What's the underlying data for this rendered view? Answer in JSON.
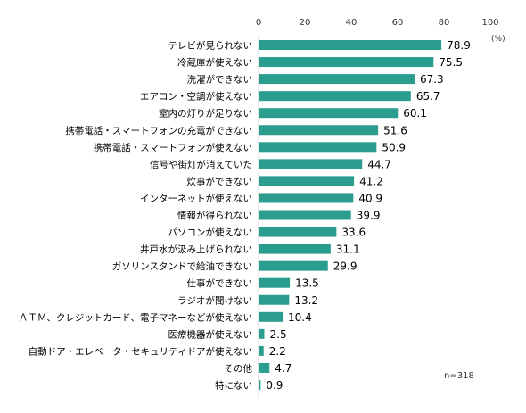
{
  "chart_data": {
    "type": "bar",
    "orientation": "horizontal",
    "unit_label": "(%)",
    "note": "n=318",
    "bar_color": "#2a9d8f",
    "xlim": [
      0,
      100
    ],
    "xticks": [
      "0",
      "20",
      "40",
      "60",
      "80",
      "100"
    ],
    "grid": false,
    "categories": [
      "テレビが見られない",
      "冷蔵庫が使えない",
      "洗濯ができない",
      "エアコン・空調が使えない",
      "室内の灯りが足りない",
      "携帯電話・スマートフォンの充電ができない",
      "携帯電話・スマートフォンが使えない",
      "信号や街灯が消えていた",
      "炊事ができない",
      "インターネットが使えない",
      "情報が得られない",
      "パソコンが使えない",
      "井戸水が汲み上げられない",
      "ガソリンスタンドで給油できない",
      "仕事ができない",
      "ラジオが聞けない",
      "ＡＴＭ、クレジットカード、電子マネーなどが使えない",
      "医療機器が使えない",
      "自動ドア・エレベータ・セキュリティドアが使えない",
      "その他",
      "特にない"
    ],
    "values": [
      78.9,
      75.5,
      67.3,
      65.7,
      60.1,
      51.6,
      50.9,
      44.7,
      41.2,
      40.9,
      39.9,
      33.6,
      31.1,
      29.9,
      13.5,
      13.2,
      10.4,
      2.5,
      2.2,
      4.7,
      0.9
    ],
    "value_labels": [
      "78.9",
      "75.5",
      "67.3",
      "65.7",
      "60.1",
      "51.6",
      "50.9",
      "44.7",
      "41.2",
      "40.9",
      "39.9",
      "33.6",
      "31.1",
      "29.9",
      "13.5",
      "13.2",
      "10.4",
      "2.5",
      "2.2",
      "4.7",
      "0.9"
    ]
  }
}
